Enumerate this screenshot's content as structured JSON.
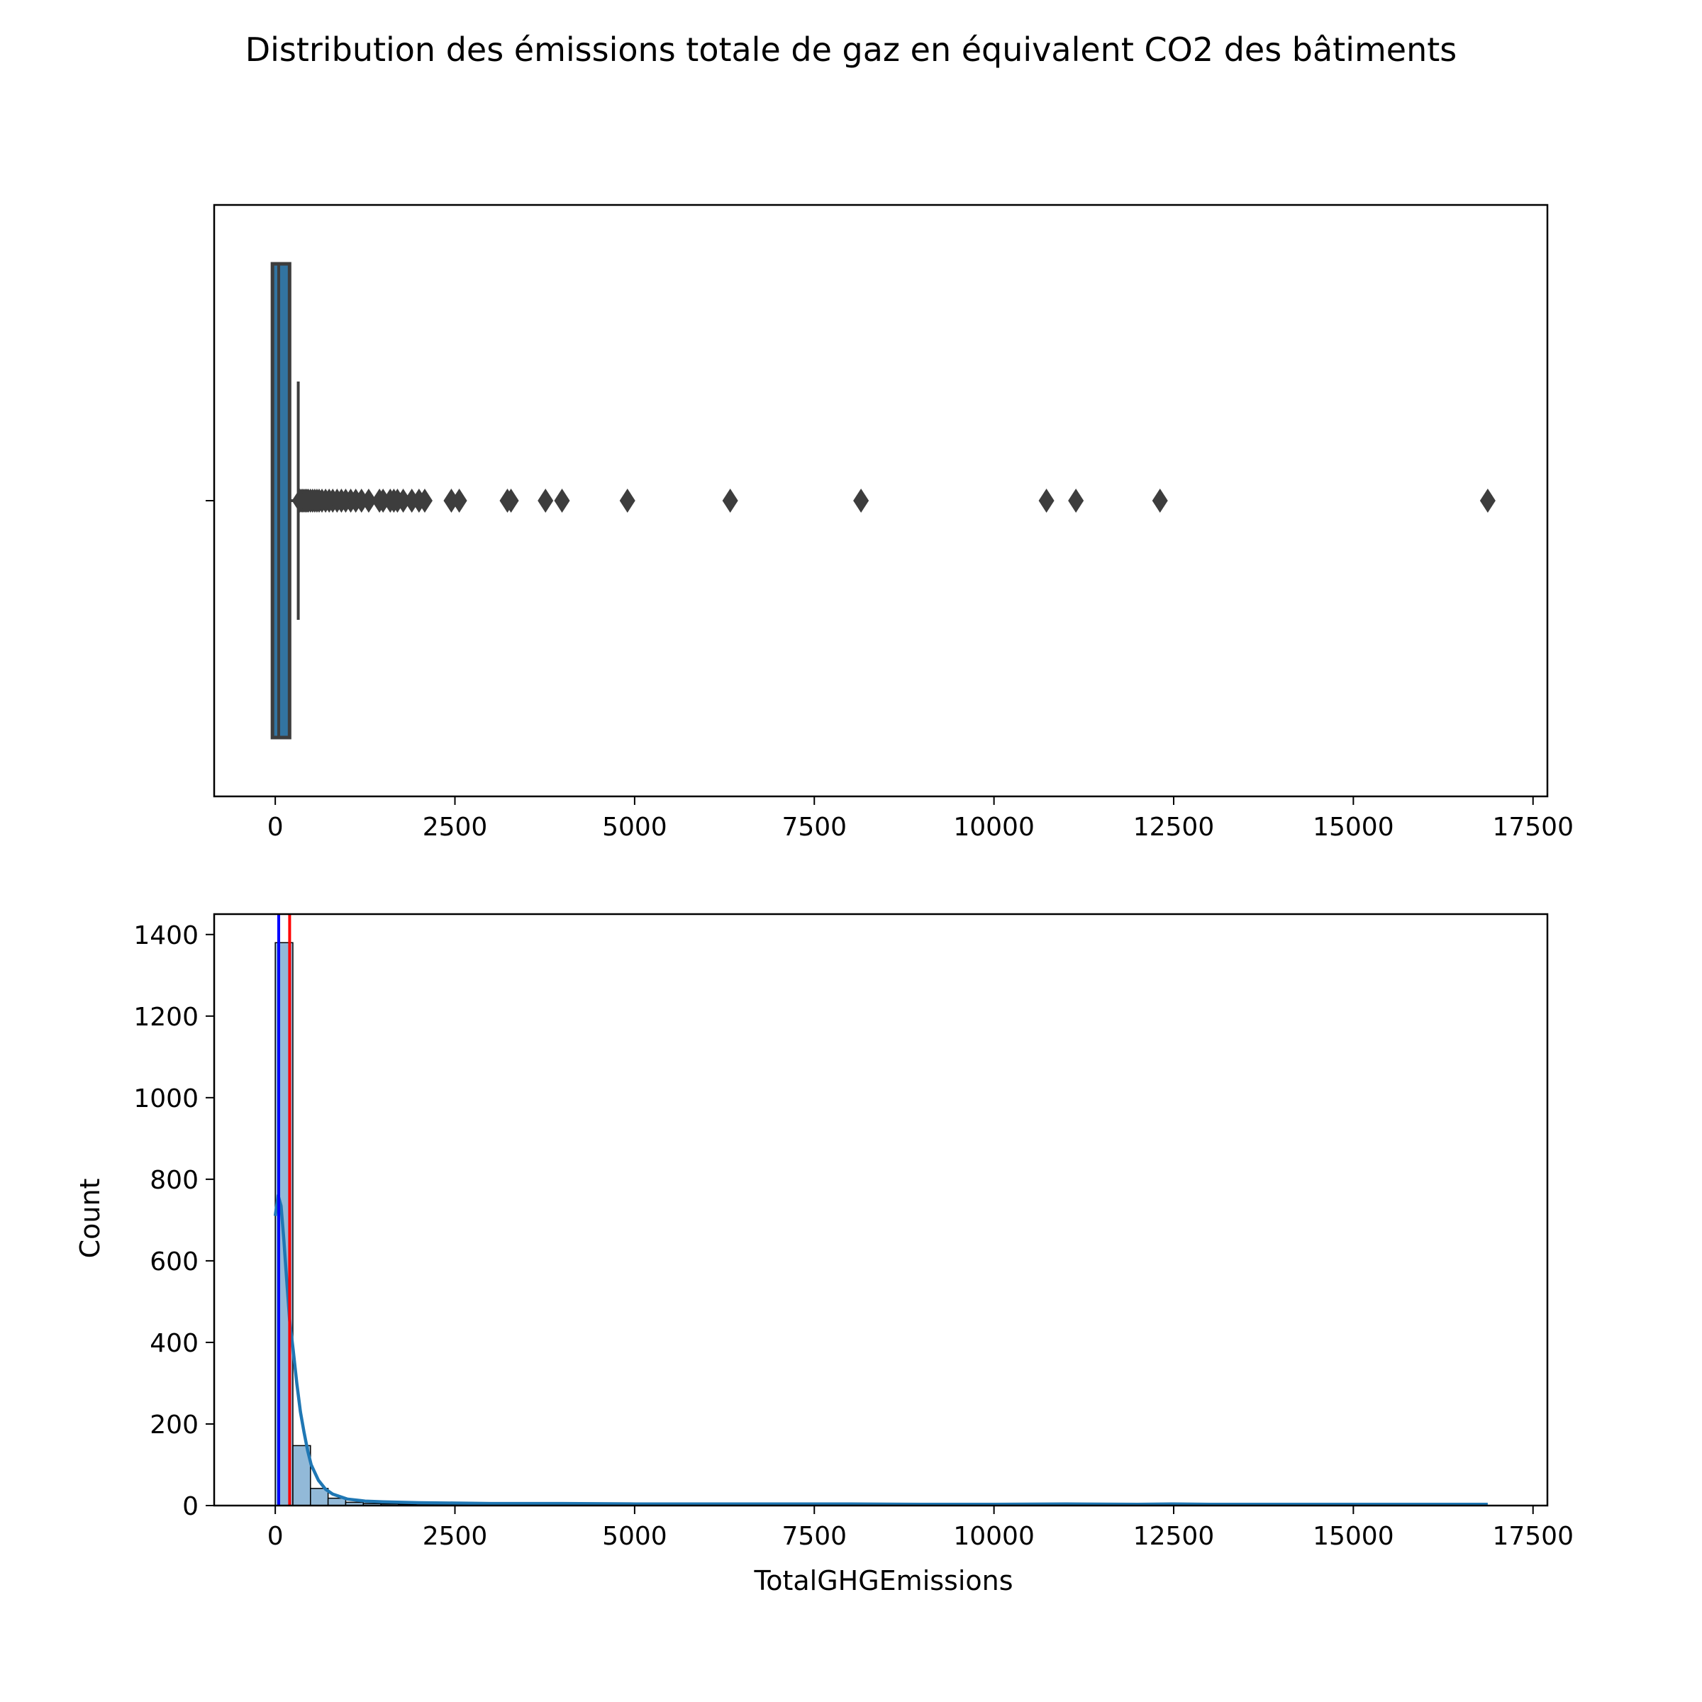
{
  "figure": {
    "title": "Distribution des émissions totale de gaz en équivalent CO2 des bâtiments"
  },
  "colors": {
    "box_line": "#3d3d3d",
    "box_fill": "#3274a1",
    "hist_fill": "#92b9d8",
    "kde_line": "#1f77b4",
    "mean_line": "#ff0000",
    "median_line": "#0000ff"
  },
  "chart_data": [
    {
      "type": "box",
      "xlabel": "",
      "ylabel": "",
      "xlim": [
        -850,
        17700
      ],
      "xticks": [
        0,
        2500,
        5000,
        7500,
        10000,
        12500,
        15000,
        17500
      ],
      "q1": 20,
      "median": 48,
      "q3": 140,
      "whisker_low": 0,
      "whisker_high": 320,
      "outliers": [
        340,
        360,
        380,
        400,
        420,
        440,
        460,
        490,
        520,
        550,
        580,
        610,
        650,
        700,
        750,
        800,
        860,
        920,
        980,
        1050,
        1120,
        1200,
        1300,
        1450,
        1500,
        1600,
        1650,
        1700,
        1780,
        1900,
        2000,
        2080,
        2450,
        2560,
        3230,
        3280,
        3760,
        3990,
        4900,
        6330,
        8150,
        10730,
        11140,
        12310,
        16870
      ]
    },
    {
      "type": "histogram",
      "xlabel": "TotalGHGEmissions",
      "ylabel": "Count",
      "xlim": [
        -850,
        17700
      ],
      "ylim": [
        0,
        1450
      ],
      "xticks": [
        0,
        2500,
        5000,
        7500,
        10000,
        12500,
        15000,
        17500
      ],
      "yticks": [
        0,
        200,
        400,
        600,
        800,
        1000,
        1200,
        1400
      ],
      "bin_width": 245,
      "bin_start": 0,
      "counts": [
        1380,
        147,
        42,
        18,
        8,
        5,
        4,
        3,
        2,
        3,
        2,
        1,
        1,
        1,
        0,
        1,
        1,
        1,
        1,
        1,
        0,
        0,
        1,
        1,
        0,
        0,
        0,
        0,
        0,
        0,
        0,
        0,
        0,
        1,
        0,
        0,
        0,
        0,
        0,
        0,
        0,
        0,
        0,
        1,
        0,
        0,
        0,
        0,
        0,
        0,
        0,
        0,
        0,
        0,
        0,
        0,
        0,
        0,
        0,
        0,
        0,
        0,
        0,
        0,
        0,
        0,
        0,
        0,
        0
      ],
      "kde": {
        "x": [
          0,
          40,
          80,
          120,
          160,
          200,
          250,
          300,
          350,
          400,
          450,
          500,
          600,
          700,
          800,
          1000,
          1250,
          1500,
          2000,
          2500,
          3000,
          3500,
          4000,
          5000,
          6000,
          7000,
          8000,
          9000,
          10000,
          11000,
          12000,
          12500,
          13000,
          14000,
          15000,
          16000,
          16870
        ],
        "y": [
          710,
          760,
          735,
          650,
          550,
          455,
          380,
          300,
          230,
          180,
          135,
          100,
          62,
          40,
          28,
          16,
          11,
          9,
          7,
          6,
          5,
          5,
          5,
          4,
          4,
          4,
          4,
          3,
          3,
          4,
          3,
          4,
          3,
          3,
          3,
          3,
          3
        ]
      },
      "mean_line": 200,
      "median_line": 48
    }
  ]
}
